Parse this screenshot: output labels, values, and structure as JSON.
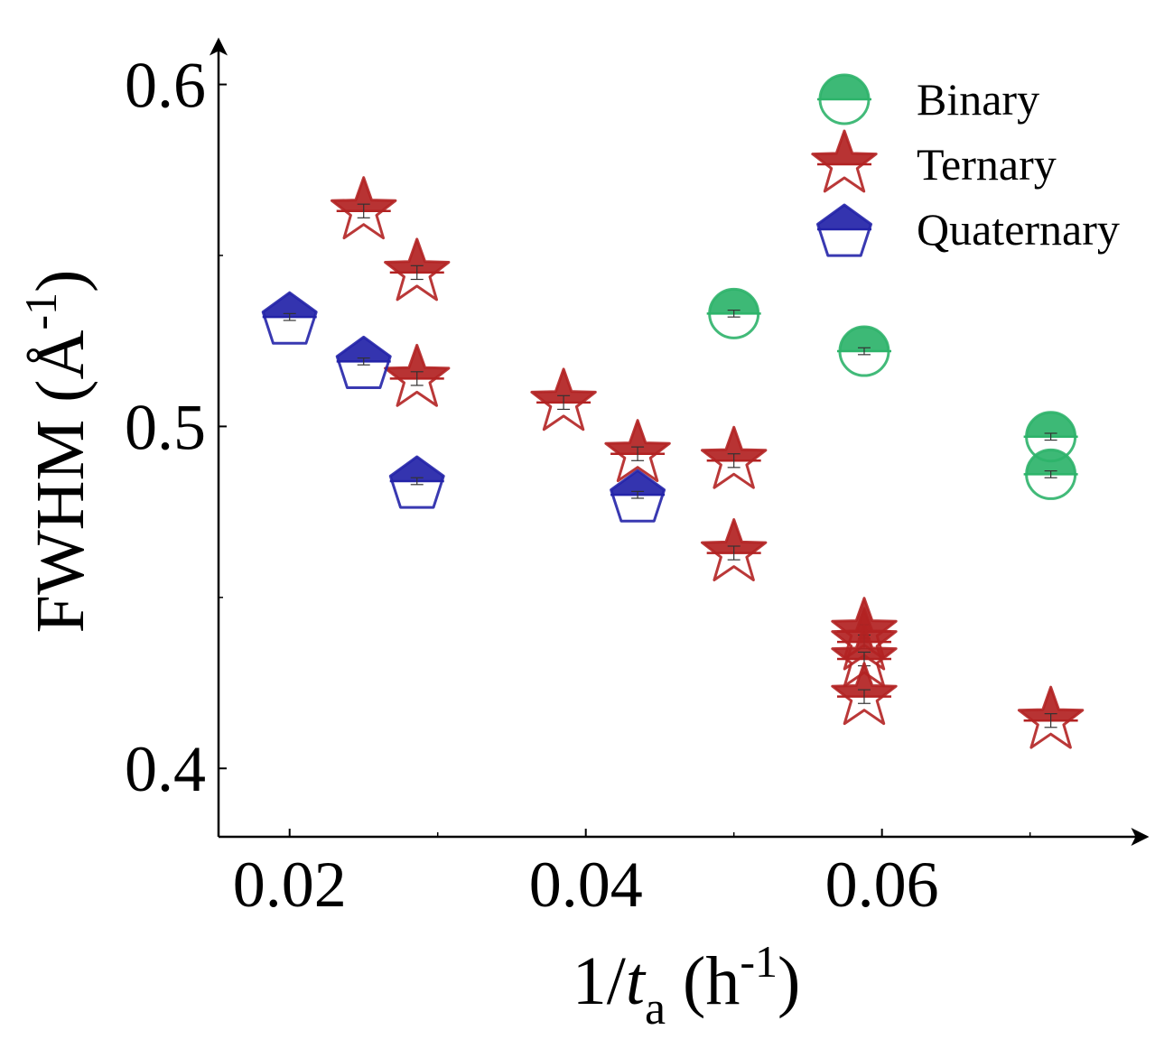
{
  "chart_data": {
    "type": "scatter",
    "title": "",
    "xlabel": {
      "main": "1/",
      "italic": "t",
      "sub": "a",
      "unit_open": " (h",
      "unit_sup": "-1",
      "unit_close": ")"
    },
    "ylabel": {
      "main": "FWHM (Å",
      "sup": "-1",
      "close": ")"
    },
    "xlim": [
      0.0152,
      0.0774
    ],
    "ylim": [
      0.38,
      0.6115
    ],
    "xticks": [
      0.02,
      0.04,
      0.06
    ],
    "xtick_labels": [
      "0.02",
      "0.04",
      "0.06"
    ],
    "xminor": [
      0.03,
      0.05,
      0.07
    ],
    "yticks": [
      0.4,
      0.5,
      0.6
    ],
    "ytick_labels": [
      "0.4",
      "0.5",
      "0.6"
    ],
    "yminor": [
      0.45,
      0.55
    ],
    "grid": false,
    "legend_position": "top-right",
    "series": [
      {
        "name": "Binary",
        "marker": "circle",
        "color": "#2db36a",
        "points": [
          {
            "x": 0.05,
            "y": 0.533,
            "err": 0.001
          },
          {
            "x": 0.0588,
            "y": 0.522,
            "err": 0.001
          },
          {
            "x": 0.0714,
            "y": 0.497,
            "err": 0.001
          },
          {
            "x": 0.0714,
            "y": 0.486,
            "err": 0.001
          }
        ]
      },
      {
        "name": "Ternary",
        "marker": "star",
        "color": "#b22222",
        "points": [
          {
            "x": 0.025,
            "y": 0.563,
            "err": 0.002
          },
          {
            "x": 0.0286,
            "y": 0.545,
            "err": 0.002
          },
          {
            "x": 0.0286,
            "y": 0.514,
            "err": 0.002
          },
          {
            "x": 0.0385,
            "y": 0.507,
            "err": 0.002
          },
          {
            "x": 0.0435,
            "y": 0.492,
            "err": 0.002
          },
          {
            "x": 0.05,
            "y": 0.49,
            "err": 0.002
          },
          {
            "x": 0.05,
            "y": 0.463,
            "err": 0.002
          },
          {
            "x": 0.0588,
            "y": 0.44,
            "err": 0.002
          },
          {
            "x": 0.0588,
            "y": 0.437,
            "err": 0.002
          },
          {
            "x": 0.0588,
            "y": 0.432,
            "err": 0.002
          },
          {
            "x": 0.0588,
            "y": 0.421,
            "err": 0.002
          },
          {
            "x": 0.0714,
            "y": 0.414,
            "err": 0.002
          }
        ]
      },
      {
        "name": "Quaternary",
        "marker": "pentagon",
        "color": "#2323a8",
        "points": [
          {
            "x": 0.02,
            "y": 0.532,
            "err": 0.001
          },
          {
            "x": 0.025,
            "y": 0.519,
            "err": 0.001
          },
          {
            "x": 0.0286,
            "y": 0.484,
            "err": 0.001
          },
          {
            "x": 0.0435,
            "y": 0.48,
            "err": 0.001
          }
        ]
      }
    ]
  }
}
